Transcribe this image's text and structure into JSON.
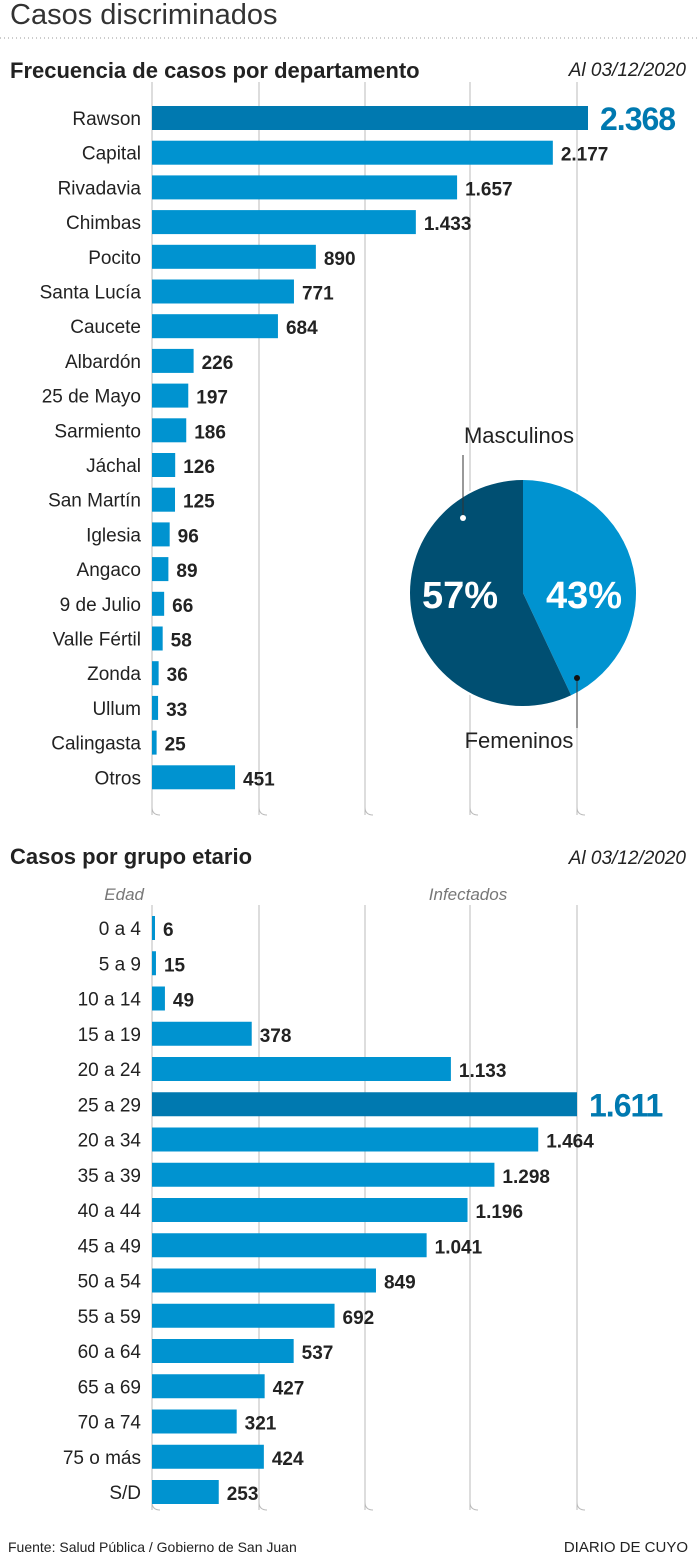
{
  "header": {
    "title": "Casos discriminados"
  },
  "footer": {
    "source": "Fuente: Salud Pública / Gobierno de San Juan",
    "brand": "DIARIO DE CUYO"
  },
  "colors": {
    "bar": "#0093d0",
    "highlight": "#0079b0",
    "pie_dark": "#004f72",
    "pie_light": "#0093d0",
    "highlight_text": "#0079b0"
  },
  "chart_data": [
    {
      "type": "bar",
      "orientation": "horizontal",
      "title": "Frecuencia de casos por departamento",
      "date": "Al 03/12/2020",
      "categories": [
        "Rawson",
        "Capital",
        "Rivadavia",
        "Chimbas",
        "Pocito",
        "Santa Lucía",
        "Caucete",
        "Albardón",
        "25 de Mayo",
        "Sarmiento",
        "Jáchal",
        "San Martín",
        "Iglesia",
        "Angaco",
        "9 de Julio",
        "Valle Fértil",
        "Zonda",
        "Ullum",
        "Calingasta",
        "Otros"
      ],
      "values": [
        2368,
        2177,
        1657,
        1433,
        890,
        771,
        684,
        226,
        197,
        186,
        126,
        125,
        96,
        89,
        66,
        58,
        36,
        33,
        25,
        451
      ],
      "labels": [
        "2.368",
        "2.177",
        "1.657",
        "1.433",
        "890",
        "771",
        "684",
        "226",
        "197",
        "186",
        "126",
        "125",
        "96",
        "89",
        "66",
        "58",
        "36",
        "33",
        "25",
        "451"
      ],
      "highlight_index": 0,
      "grid": true
    },
    {
      "type": "pie",
      "slices": [
        {
          "name": "Masculinos",
          "value": 57,
          "label": "57%"
        },
        {
          "name": "Femeninos",
          "value": 43,
          "label": "43%"
        }
      ]
    },
    {
      "type": "bar",
      "orientation": "horizontal",
      "title": "Casos por grupo etario",
      "date": "Al 03/12/2020",
      "xlabel": "Infectados",
      "ylabel": "Edad",
      "categories": [
        "0 a 4",
        "5 a 9",
        "10 a 14",
        "15 a 19",
        "20 a 24",
        "25 a 29",
        "20 a 34",
        "35 a 39",
        "40 a 44",
        "45 a 49",
        "50 a 54",
        "55 a 59",
        "60 a 64",
        "65 a 69",
        "70 a 74",
        "75 o más",
        "S/D"
      ],
      "values": [
        6,
        15,
        49,
        378,
        1133,
        1611,
        1464,
        1298,
        1196,
        1041,
        849,
        692,
        537,
        427,
        321,
        424,
        253
      ],
      "labels": [
        "6",
        "15",
        "49",
        "378",
        "1.133",
        "1.611",
        "1.464",
        "1.298",
        "1.196",
        "1.041",
        "849",
        "692",
        "537",
        "427",
        "321",
        "424",
        "253"
      ],
      "highlight_index": 5,
      "grid": true
    }
  ]
}
